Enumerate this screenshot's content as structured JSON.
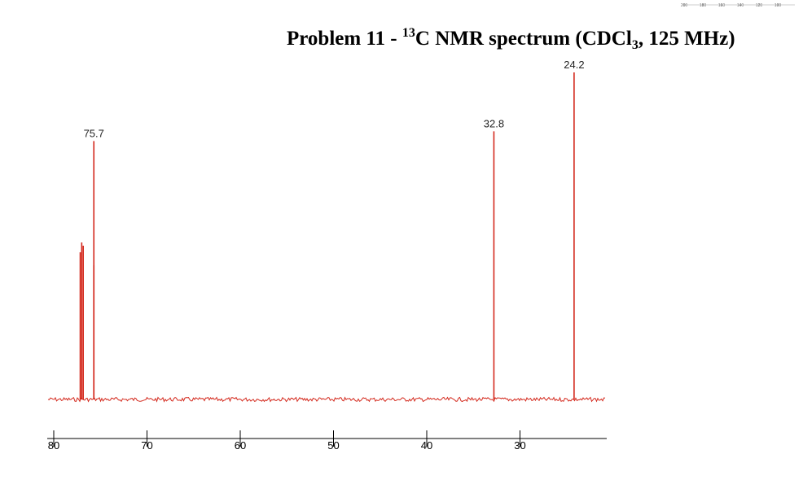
{
  "title": {
    "prefix": "Problem 11 - ",
    "isotope": "13",
    "nucleus_and_text": "C NMR spectrum (CDCl",
    "subscript": "3",
    "suffix": ", 125 MHz)"
  },
  "colors": {
    "spectrum": "#d42a1e",
    "axis": "#000000",
    "text": "#000000"
  },
  "chart_data": {
    "type": "line",
    "xlabel": "",
    "ylabel": "",
    "x_reversed": true,
    "xlim": [
      81,
      20.5
    ],
    "ylim": [
      0,
      100
    ],
    "baseline": 0,
    "x_ticks": [
      "80",
      "70",
      "60",
      "50",
      "40",
      "30"
    ],
    "peaks": [
      {
        "shift": 77.16,
        "intensity": 45
      },
      {
        "shift": 77.0,
        "intensity": 48
      },
      {
        "shift": 76.84,
        "intensity": 47
      },
      {
        "shift": 75.7,
        "intensity": 41
      },
      {
        "shift": 75.7,
        "intensity": 79
      },
      {
        "shift": 32.8,
        "intensity": 82
      },
      {
        "shift": 24.2,
        "intensity": 100
      }
    ],
    "peak_labels": [
      {
        "shift": 75.7,
        "label": "75.7"
      },
      {
        "shift": 32.8,
        "label": "32.8"
      },
      {
        "shift": 24.2,
        "label": "24.2"
      }
    ]
  },
  "mini_axis": {
    "ticks": [
      "200",
      "180",
      "160",
      "140",
      "120",
      "100"
    ]
  }
}
